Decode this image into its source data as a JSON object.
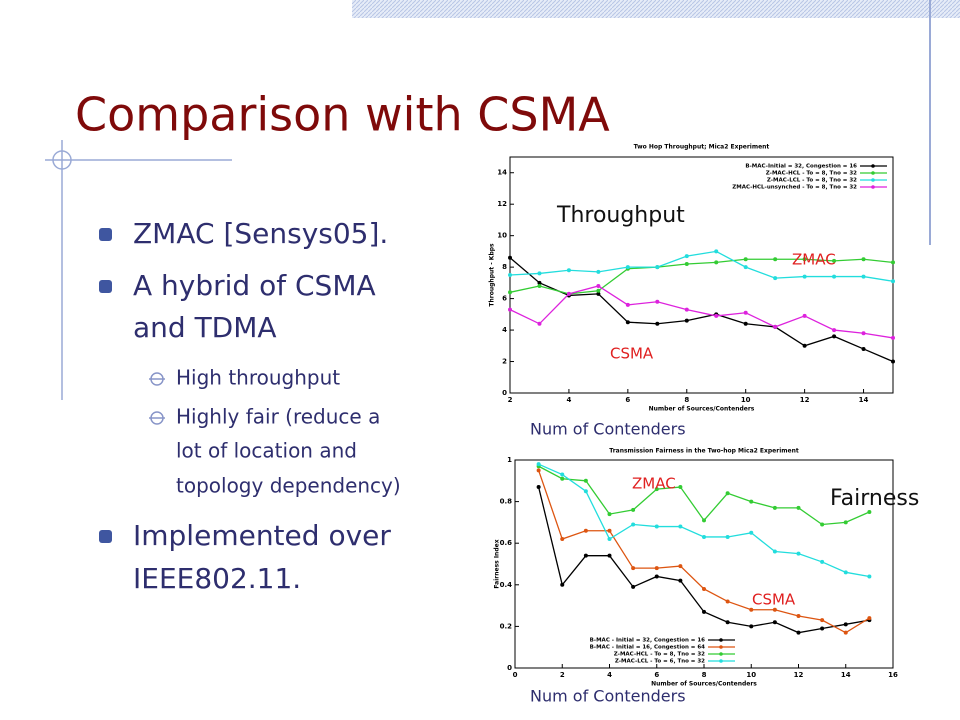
{
  "slide": {
    "title": "Comparison with CSMA",
    "bullets": [
      {
        "level": 1,
        "lines": [
          "ZMAC [Sensys05]."
        ]
      },
      {
        "level": 1,
        "lines": [
          "A hybrid of CSMA",
          "and TDMA"
        ]
      },
      {
        "level": 2,
        "lines": [
          "High throughput"
        ]
      },
      {
        "level": 2,
        "lines": [
          "Highly fair (reduce a",
          "lot of location and",
          "topology dependency)"
        ]
      },
      {
        "level": 1,
        "lines": [
          "Implemented over",
          "IEEE802.11."
        ]
      }
    ]
  },
  "charts": [
    {
      "type": "line",
      "title": "Two Hop Throughput; Mica2 Experiment",
      "x_label": "Number of Sources/Contenders",
      "y_label": "Throughput - Kbps",
      "x": [
        2,
        3,
        4,
        5,
        6,
        7,
        8,
        9,
        10,
        11,
        12,
        13,
        14,
        15
      ],
      "xlim": [
        2,
        15
      ],
      "xticks": [
        2,
        4,
        6,
        8,
        10,
        12,
        14
      ],
      "ylim": [
        0,
        15
      ],
      "yticks": [
        0,
        2,
        4,
        6,
        8,
        10,
        12,
        14
      ],
      "legend": "top-right",
      "series": [
        {
          "name": "B-MAC-Initial = 32, Congestion = 16",
          "color": "#000000",
          "values": [
            8.6,
            7.0,
            6.2,
            6.3,
            4.5,
            4.4,
            4.6,
            5.0,
            4.4,
            4.2,
            3.0,
            3.6,
            2.8,
            2.0
          ]
        },
        {
          "name": "Z-MAC-HCL - To = 8, Tno = 32",
          "color": "#33cc33",
          "values": [
            6.4,
            6.8,
            6.3,
            6.5,
            7.9,
            8.0,
            8.2,
            8.3,
            8.5,
            8.5,
            8.5,
            8.4,
            8.5,
            8.3
          ]
        },
        {
          "name": "Z-MAC-LCL - To = 8, Tno = 32",
          "color": "#22dddd",
          "values": [
            7.5,
            7.6,
            7.8,
            7.7,
            8.0,
            8.0,
            8.7,
            9.0,
            8.0,
            7.3,
            7.4,
            7.4,
            7.4,
            7.1
          ]
        },
        {
          "name": "ZMAC-HCL-unsynched - To = 8, Tno = 32",
          "color": "#dd22dd",
          "values": [
            5.3,
            4.4,
            6.3,
            6.8,
            5.6,
            5.8,
            5.3,
            4.9,
            5.1,
            4.2,
            4.9,
            4.0,
            3.8,
            3.5
          ]
        }
      ],
      "annotations": [
        "Throughput",
        "ZMAC",
        "CSMA",
        "Num of Contenders"
      ]
    },
    {
      "type": "line",
      "title": "Transmission Fairness in the Two-hop Mica2 Experiment",
      "x_label": "Number of Sources/Contenders",
      "y_label": "Fairness Index",
      "x": [
        1,
        2,
        3,
        4,
        5,
        6,
        7,
        8,
        9,
        10,
        11,
        12,
        13,
        14,
        15
      ],
      "xlim": [
        0,
        16
      ],
      "xticks": [
        0,
        2,
        4,
        6,
        8,
        10,
        12,
        14,
        16
      ],
      "ylim": [
        0,
        1
      ],
      "yticks": [
        0,
        0.2,
        0.4,
        0.6,
        0.8,
        1
      ],
      "legend": "bottom-center",
      "series": [
        {
          "name": "B-MAC - Initial = 32, Congestion = 16",
          "color": "#000000",
          "values": [
            0.87,
            0.4,
            0.54,
            0.54,
            0.39,
            0.44,
            0.42,
            0.27,
            0.22,
            0.2,
            0.22,
            0.17,
            0.19,
            0.21,
            0.23
          ]
        },
        {
          "name": "B-MAC - Initial = 16, Congestion = 64",
          "color": "#dd5511",
          "values": [
            0.95,
            0.62,
            0.66,
            0.66,
            0.48,
            0.48,
            0.49,
            0.38,
            0.32,
            0.28,
            0.28,
            0.25,
            0.23,
            0.17,
            0.24
          ]
        },
        {
          "name": "Z-MAC-HCL - To = 8, Tno = 32",
          "color": "#33cc33",
          "values": [
            0.97,
            0.91,
            0.9,
            0.74,
            0.76,
            0.86,
            0.87,
            0.71,
            0.84,
            0.8,
            0.77,
            0.77,
            0.69,
            0.7,
            0.75
          ]
        },
        {
          "name": "Z-MAC-LCL - To = 6, Tno = 32",
          "color": "#22dddd",
          "values": [
            0.98,
            0.93,
            0.85,
            0.62,
            0.69,
            0.68,
            0.68,
            0.63,
            0.63,
            0.65,
            0.56,
            0.55,
            0.51,
            0.46,
            0.44
          ]
        }
      ],
      "annotations": [
        "ZMAC",
        "Fairness",
        "CSMA",
        "Num of Contenders"
      ]
    }
  ]
}
